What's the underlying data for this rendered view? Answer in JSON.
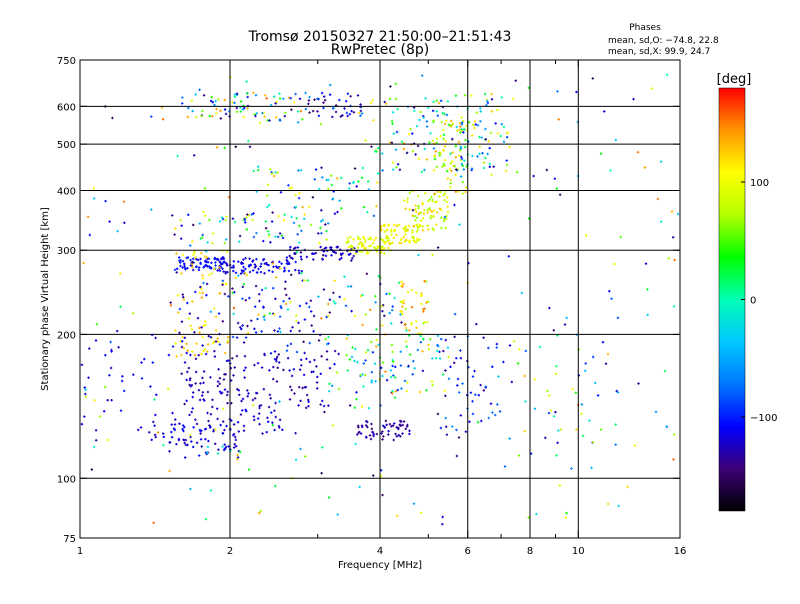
{
  "chart_data": {
    "type": "scatter",
    "title": "Tromsø 20150327 21:50:00–21:51:43",
    "subtitle": "RwPretec (8p)",
    "phase_box": {
      "header": "Phases",
      "line1": "mean, sd,O: −74.8, 22.8",
      "line2": "mean, sd,X:  99.9, 24.7"
    },
    "xlabel": "Frequency [MHz]",
    "ylabel": "Stationary phase Virtual Height [km]",
    "xscale": "log",
    "yscale": "log",
    "xlim": [
      1,
      16
    ],
    "ylim": [
      75,
      750
    ],
    "xticks": [
      1,
      2,
      4,
      6,
      8,
      10,
      16
    ],
    "xtick_labels": [
      "1",
      "2",
      "4",
      "6",
      "8",
      "10",
      "16"
    ],
    "x_minor_ticks": [
      3,
      5,
      7,
      9
    ],
    "yticks": [
      75,
      100,
      200,
      300,
      400,
      500,
      600,
      750
    ],
    "ytick_labels": [
      "75",
      "100",
      "200",
      "300",
      "400",
      "500",
      "600",
      "750"
    ],
    "grid_x": [
      2,
      4,
      6,
      8,
      10
    ],
    "grid_y": [
      100,
      200,
      300,
      400,
      500,
      600
    ],
    "grid": true,
    "colorbar": {
      "label": "[deg]",
      "range": [
        -180,
        180
      ],
      "ticks": [
        100,
        0,
        -100
      ],
      "tick_labels": [
        "100",
        "0",
        "−100"
      ],
      "colors": [
        "#000000",
        "#3c0078",
        "#0000ff",
        "#0078ff",
        "#00c8ff",
        "#00ffb4",
        "#00ff00",
        "#b4ff00",
        "#ffff00",
        "#ff9600",
        "#ff0000"
      ]
    },
    "clusters": [
      {
        "x": [
          1.55,
          1.95
        ],
        "y": [
          272,
          290
        ],
        "n": 70,
        "phase": [
          -120,
          -95
        ]
      },
      {
        "x": [
          1.9,
          2.8
        ],
        "y": [
          268,
          290
        ],
        "n": 90,
        "phase": [
          -125,
          -100
        ]
      },
      {
        "x": [
          2.6,
          3.6
        ],
        "y": [
          285,
          305
        ],
        "n": 60,
        "phase": [
          -140,
          -110
        ]
      },
      {
        "x": [
          3.4,
          4.2
        ],
        "y": [
          295,
          320
        ],
        "n": 70,
        "phase": [
          70,
          120
        ]
      },
      {
        "x": [
          4.0,
          4.8
        ],
        "y": [
          310,
          340
        ],
        "n": 70,
        "phase": [
          80,
          125
        ]
      },
      {
        "x": [
          4.5,
          5.5
        ],
        "y": [
          330,
          400
        ],
        "n": 80,
        "phase": [
          60,
          130
        ]
      },
      {
        "x": [
          5.1,
          6.0
        ],
        "y": [
          390,
          560
        ],
        "n": 70,
        "phase": [
          40,
          150
        ]
      },
      {
        "x": [
          1.5,
          3.3
        ],
        "y": [
          310,
          360
        ],
        "n": 70,
        "phase": [
          -150,
          120
        ]
      },
      {
        "x": [
          1.6,
          2.8
        ],
        "y": [
          560,
          640
        ],
        "n": 80,
        "phase": [
          -150,
          150
        ]
      },
      {
        "x": [
          2.8,
          3.7
        ],
        "y": [
          570,
          640
        ],
        "n": 40,
        "phase": [
          -150,
          -60
        ]
      },
      {
        "x": [
          3.8,
          6.8
        ],
        "y": [
          440,
          640
        ],
        "n": 110,
        "phase": [
          -150,
          150
        ]
      },
      {
        "x": [
          5.8,
          7.3
        ],
        "y": [
          430,
          560
        ],
        "n": 40,
        "phase": [
          -120,
          130
        ]
      },
      {
        "x": [
          1.55,
          2.0
        ],
        "y": [
          180,
          300
        ],
        "n": 70,
        "phase": [
          90,
          140
        ]
      },
      {
        "x": [
          1.5,
          3.2
        ],
        "y": [
          180,
          260
        ],
        "n": 90,
        "phase": [
          -150,
          -80
        ]
      },
      {
        "x": [
          1.6,
          3.2
        ],
        "y": [
          140,
          185
        ],
        "n": 140,
        "phase": [
          -140,
          -110
        ]
      },
      {
        "x": [
          1.5,
          2.1
        ],
        "y": [
          110,
          130
        ],
        "n": 60,
        "phase": [
          -130,
          -105
        ]
      },
      {
        "x": [
          1.4,
          2.6
        ],
        "y": [
          123,
          140
        ],
        "n": 60,
        "phase": [
          -135,
          -105
        ]
      },
      {
        "x": [
          3.1,
          4.3
        ],
        "y": [
          140,
          200
        ],
        "n": 60,
        "phase": [
          -150,
          140
        ]
      },
      {
        "x": [
          3.6,
          4.6
        ],
        "y": [
          120,
          132
        ],
        "n": 60,
        "phase": [
          -150,
          -115
        ]
      },
      {
        "x": [
          4.2,
          5.5
        ],
        "y": [
          150,
          200
        ],
        "n": 50,
        "phase": [
          -140,
          140
        ]
      },
      {
        "x": [
          4.4,
          5.0
        ],
        "y": [
          200,
          260
        ],
        "n": 40,
        "phase": [
          60,
          160
        ]
      },
      {
        "x": [
          5.2,
          7.0
        ],
        "y": [
          120,
          200
        ],
        "n": 50,
        "phase": [
          -140,
          -70
        ]
      },
      {
        "x": [
          7.5,
          12.0
        ],
        "y": [
          110,
          200
        ],
        "n": 40,
        "phase": [
          -140,
          140
        ]
      },
      {
        "x": [
          1.0,
          16.0
        ],
        "y": [
          80,
          700
        ],
        "n": 280,
        "phase": [
          -160,
          160
        ]
      },
      {
        "x": [
          1.0,
          1.5
        ],
        "y": [
          120,
          200
        ],
        "n": 40,
        "phase": [
          -130,
          -100
        ]
      },
      {
        "x": [
          2.2,
          4.0
        ],
        "y": [
          350,
          450
        ],
        "n": 60,
        "phase": [
          -140,
          140
        ]
      },
      {
        "x": [
          2.0,
          4.5
        ],
        "y": [
          200,
          270
        ],
        "n": 70,
        "phase": [
          -150,
          150
        ]
      }
    ]
  }
}
